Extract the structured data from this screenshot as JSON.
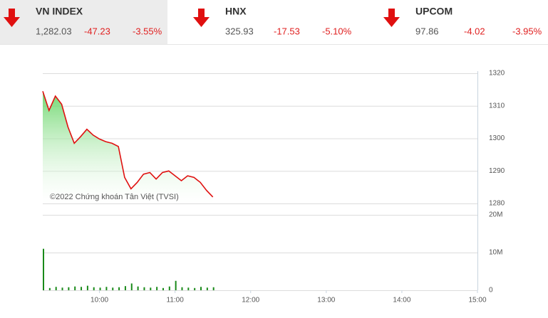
{
  "indices": [
    {
      "name": "VN INDEX",
      "value": "1,282.03",
      "change": "-47.23",
      "percent": "-3.55%"
    },
    {
      "name": "HNX",
      "value": "325.93",
      "change": "-17.53",
      "percent": "-5.10%"
    },
    {
      "name": "UPCOM",
      "value": "97.86",
      "change": "-4.02",
      "percent": "-3.95%"
    }
  ],
  "chart_data": [
    {
      "type": "line",
      "annotation": "©2022 Chứng khoán Tân Việt (TVSI)",
      "x": [
        555,
        560,
        565,
        570,
        575,
        580,
        585,
        590,
        595,
        600,
        605,
        610,
        615,
        620,
        625,
        630,
        635,
        640,
        645,
        650,
        655,
        660,
        665,
        670,
        675,
        680,
        685,
        690
      ],
      "values": [
        1314.5,
        1308.6,
        1313,
        1310.5,
        1303.5,
        1298.5,
        1300.5,
        1302.8,
        1301,
        1299.8,
        1299,
        1298.5,
        1297.5,
        1288,
        1284.5,
        1286.5,
        1289,
        1289.5,
        1287.5,
        1289.5,
        1290,
        1288.5,
        1287,
        1288.5,
        1288,
        1286.5,
        1284,
        1282
      ],
      "color": "#e01010",
      "fill": "#7ee07e",
      "xlim": [
        555,
        900
      ],
      "ylim": [
        1280,
        1320
      ],
      "yticks": [
        1280,
        1290,
        1300,
        1310,
        1320
      ],
      "grid": true
    },
    {
      "type": "bar",
      "x": [
        555,
        560,
        565,
        570,
        575,
        580,
        585,
        590,
        595,
        600,
        605,
        610,
        615,
        620,
        625,
        630,
        635,
        640,
        645,
        650,
        655,
        660,
        665,
        670,
        675,
        680,
        685,
        690
      ],
      "values": [
        11000000,
        600000,
        900000,
        700000,
        800000,
        1000000,
        900000,
        1200000,
        800000,
        700000,
        900000,
        700000,
        800000,
        1100000,
        1800000,
        1000000,
        800000,
        700000,
        900000,
        600000,
        1000000,
        2500000,
        800000,
        700000,
        600000,
        900000,
        700000,
        800000
      ],
      "color": "#1a8a1a",
      "xlim": [
        555,
        900
      ],
      "ylim": [
        0,
        20000000
      ],
      "yticks": [
        0,
        {
          "value": 10000000,
          "label": "10M"
        },
        {
          "value": 20000000,
          "label": "20M"
        }
      ],
      "xticks": [
        {
          "value": 600,
          "label": "10:00"
        },
        {
          "value": 660,
          "label": "11:00"
        },
        {
          "value": 720,
          "label": "12:00"
        },
        {
          "value": 780,
          "label": "13:00"
        },
        {
          "value": 840,
          "label": "14:00"
        },
        {
          "value": 900,
          "label": "15:00"
        }
      ],
      "grid": true
    }
  ]
}
